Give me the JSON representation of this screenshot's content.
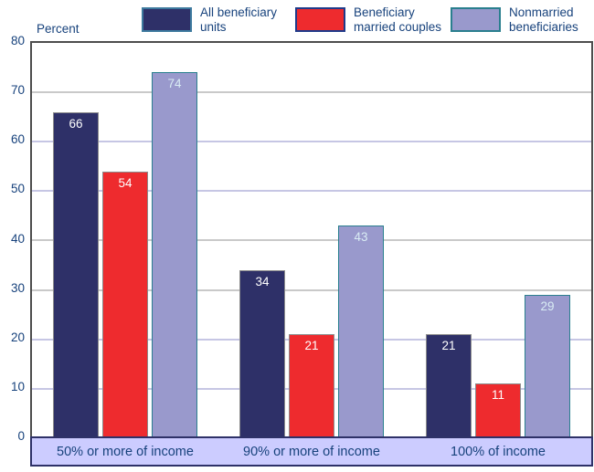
{
  "colors": {
    "navy_bar": "#2e3068",
    "red_bar": "#ee2b2e",
    "purple_bar": "#9999cc",
    "purple_border": "#2a7f8e",
    "gray_border": "#8c8c8c",
    "legend_red_border": "#1f3a8a",
    "legend_navy_border": "#3d7a9e",
    "band_bg": "#ccccff",
    "band_border": "#2e3168",
    "text_navy": "#17427c",
    "plot_border": "#4d4d4d",
    "grid_gray": "#c9c9c9",
    "grid_lavender": "#c6c6e4"
  },
  "legend": {
    "items": [
      {
        "line1": "All beneficiary",
        "line2": "units",
        "color": "#2e3068",
        "border": "#3d7a9e"
      },
      {
        "line1": "Beneficiary",
        "line2": "married couples",
        "color": "#ee2b2e",
        "border": "#1f3a8a"
      },
      {
        "line1": "Nonmarried",
        "line2": "beneficiaries",
        "color": "#9999cc",
        "border": "#2a7f8e"
      }
    ]
  },
  "chart_data": {
    "type": "bar",
    "title": "",
    "ylabel": "Percent",
    "xlabel": "",
    "ylim": [
      0,
      80
    ],
    "yticks": [
      0,
      10,
      20,
      30,
      40,
      50,
      60,
      70,
      80
    ],
    "grid": true,
    "legend_position": "top",
    "gridlines": [
      {
        "value": 10,
        "color": "#c6c6e4"
      },
      {
        "value": 20,
        "color": "#c6c6e4"
      },
      {
        "value": 30,
        "color": "#c9c9c9"
      },
      {
        "value": 40,
        "color": "#c9c9c9"
      },
      {
        "value": 50,
        "color": "#c6c6e4"
      },
      {
        "value": 60,
        "color": "#c6c6e4"
      },
      {
        "value": 70,
        "color": "#c9c9c9"
      }
    ],
    "categories": [
      "50% or more of income",
      "90% or more of income",
      "100% of income"
    ],
    "series": [
      {
        "name": "All beneficiary units",
        "values": [
          66,
          34,
          21
        ],
        "color": "#2e3068",
        "border": "#8c8c8c",
        "label_color": "#ffffff"
      },
      {
        "name": "Beneficiary married couples",
        "values": [
          54,
          21,
          11
        ],
        "color": "#ee2b2e",
        "border": "#8c8c8c",
        "label_color": "#ffffff"
      },
      {
        "name": "Nonmarried beneficiaries",
        "values": [
          74,
          43,
          29
        ],
        "color": "#9999cc",
        "border": "#2a7f8e",
        "label_color": "#d9ecf4"
      }
    ]
  }
}
